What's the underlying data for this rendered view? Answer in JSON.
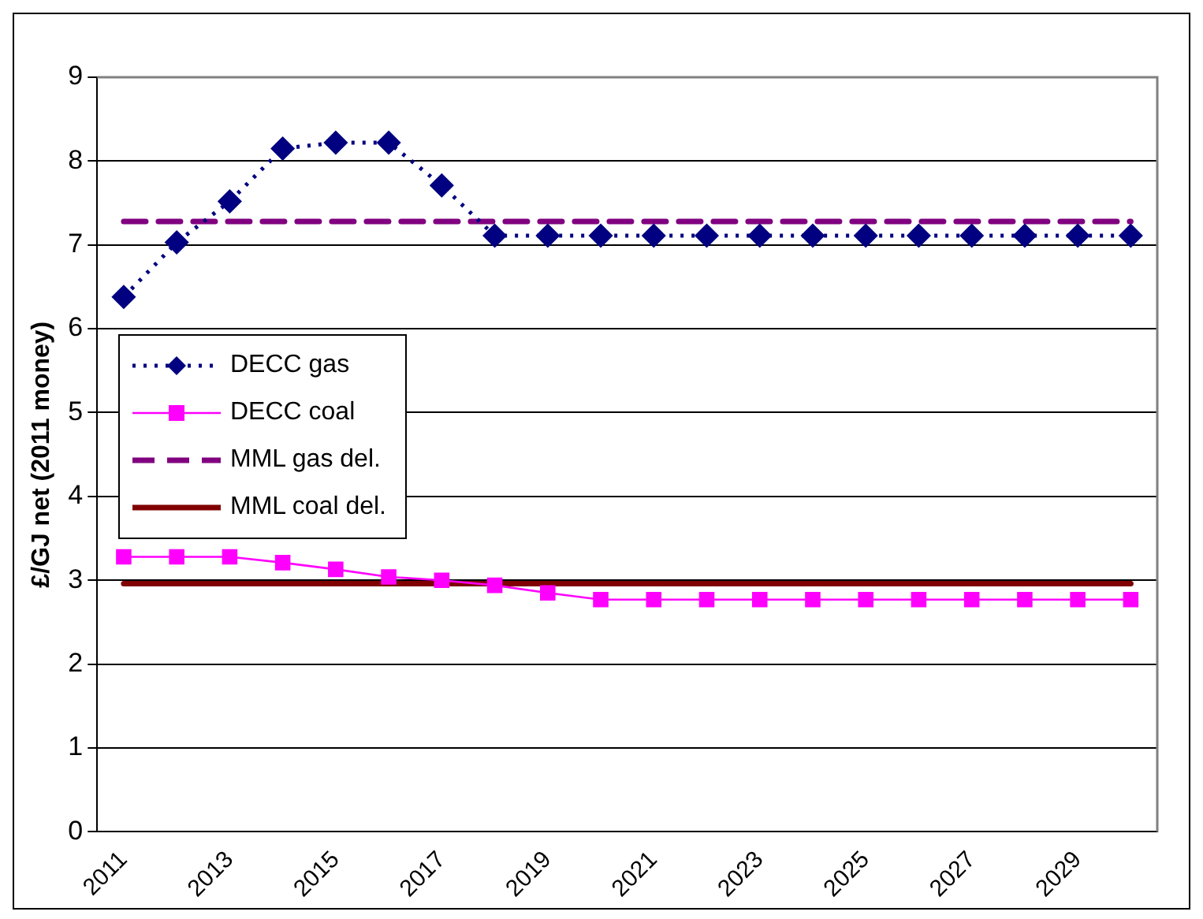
{
  "chart_data": {
    "type": "line",
    "ylabel": "£/GJ net (2011 money)",
    "categories": [
      "2011",
      null,
      "2013",
      null,
      "2015",
      null,
      "2017",
      null,
      "2019",
      null,
      "2021",
      null,
      "2023",
      null,
      "2025",
      null,
      "2027",
      null,
      "2029",
      null
    ],
    "series": [
      {
        "name": "DECC gas",
        "color": "#000080",
        "marker": "diamond",
        "line_style": "dotted",
        "values": [
          6.38,
          7.03,
          7.52,
          8.15,
          8.22,
          8.22,
          7.71,
          7.11,
          7.11,
          7.11,
          7.11,
          7.11,
          7.11,
          7.11,
          7.11,
          7.11,
          7.11,
          7.11,
          7.11,
          7.11
        ]
      },
      {
        "name": "DECC coal",
        "color": "#ff00ff",
        "marker": "square",
        "line_style": "solid",
        "values": [
          3.28,
          3.28,
          3.28,
          3.21,
          3.13,
          3.04,
          3.0,
          2.94,
          2.85,
          2.77,
          2.77,
          2.77,
          2.77,
          2.77,
          2.77,
          2.77,
          2.77,
          2.77,
          2.77,
          2.77
        ]
      },
      {
        "name": "MML gas del.",
        "color": "#800080",
        "marker": "none",
        "line_style": "dashed",
        "values": [
          7.28,
          7.28,
          7.28,
          7.28,
          7.28,
          7.28,
          7.28,
          7.28,
          7.28,
          7.28,
          7.28,
          7.28,
          7.28,
          7.28,
          7.28,
          7.28,
          7.28,
          7.28,
          7.28,
          7.28
        ]
      },
      {
        "name": "MML coal del.",
        "color": "#800000",
        "marker": "none",
        "line_style": "solid",
        "values": [
          2.96,
          2.96,
          2.96,
          2.96,
          2.96,
          2.96,
          2.96,
          2.96,
          2.96,
          2.96,
          2.96,
          2.96,
          2.96,
          2.96,
          2.96,
          2.96,
          2.96,
          2.96,
          2.96,
          2.96
        ]
      }
    ],
    "ylim": [
      0,
      9
    ],
    "yticks": [
      0,
      1,
      2,
      3,
      4,
      5,
      6,
      7,
      8,
      9
    ],
    "grid": "y",
    "legend": "left"
  }
}
